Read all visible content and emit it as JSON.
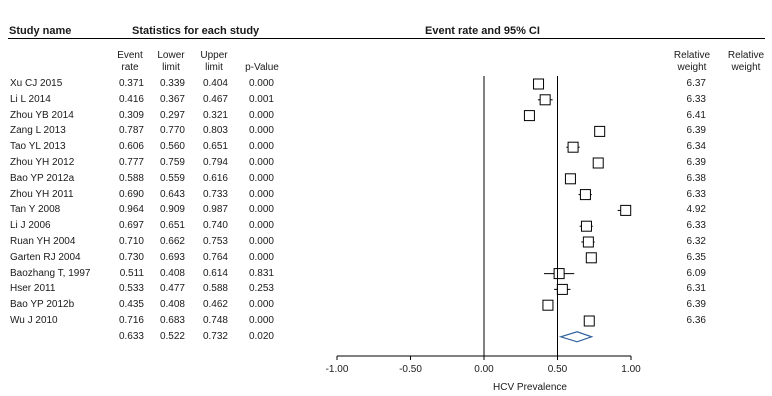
{
  "headers": {
    "study_name": "Study name",
    "stats": "Statistics for each study",
    "event_rate_ci": "Event rate and 95% CI",
    "rel_weight_1": [
      "Relative",
      "weight"
    ],
    "rel_weight_2": [
      "Relative",
      "weight"
    ],
    "event_rate": [
      "Event",
      "rate"
    ],
    "lower_limit": [
      "Lower",
      "limit"
    ],
    "upper_limit": [
      "Upper",
      "limit"
    ],
    "p_value": "p-Value"
  },
  "chart_data": {
    "type": "forest",
    "xlabel": "HCV Prevalence",
    "xlim": [
      -1.0,
      1.0
    ],
    "x_ticks": [
      "-1.00",
      "-0.50",
      "0.00",
      "0.50",
      "1.00"
    ],
    "x_tick_values": [
      -1.0,
      -0.5,
      0.0,
      0.5,
      1.0
    ],
    "vertical_lines": [
      0.0,
      0.5
    ],
    "studies": [
      {
        "name": "Xu CJ 2015",
        "rate": "0.371",
        "lower": "0.339",
        "upper": "0.404",
        "p": "0.000",
        "weight": "6.37",
        "x": 0.371,
        "lo": 0.339,
        "hi": 0.404
      },
      {
        "name": "Li L 2014",
        "rate": "0.416",
        "lower": "0.367",
        "upper": "0.467",
        "p": "0.001",
        "weight": "6.33",
        "x": 0.416,
        "lo": 0.367,
        "hi": 0.467
      },
      {
        "name": "Zhou YB 2014",
        "rate": "0.309",
        "lower": "0.297",
        "upper": "0.321",
        "p": "0.000",
        "weight": "6.41",
        "x": 0.309,
        "lo": 0.297,
        "hi": 0.321
      },
      {
        "name": "Zang L 2013",
        "rate": "0.787",
        "lower": "0.770",
        "upper": "0.803",
        "p": "0.000",
        "weight": "6.39",
        "x": 0.787,
        "lo": 0.77,
        "hi": 0.803
      },
      {
        "name": "Tao YL 2013",
        "rate": "0.606",
        "lower": "0.560",
        "upper": "0.651",
        "p": "0.000",
        "weight": "6.34",
        "x": 0.606,
        "lo": 0.56,
        "hi": 0.651
      },
      {
        "name": "Zhou YH 2012",
        "rate": "0.777",
        "lower": "0.759",
        "upper": "0.794",
        "p": "0.000",
        "weight": "6.39",
        "x": 0.777,
        "lo": 0.759,
        "hi": 0.794
      },
      {
        "name": "Bao YP 2012a",
        "rate": "0.588",
        "lower": "0.559",
        "upper": "0.616",
        "p": "0.000",
        "weight": "6.38",
        "x": 0.588,
        "lo": 0.559,
        "hi": 0.616
      },
      {
        "name": "Zhou YH 2011",
        "rate": "0.690",
        "lower": "0.643",
        "upper": "0.733",
        "p": "0.000",
        "weight": "6.33",
        "x": 0.69,
        "lo": 0.643,
        "hi": 0.733
      },
      {
        "name": "Tan Y 2008",
        "rate": "0.964",
        "lower": "0.909",
        "upper": "0.987",
        "p": "0.000",
        "weight": "4.92",
        "x": 0.964,
        "lo": 0.909,
        "hi": 0.987
      },
      {
        "name": "Li J 2006",
        "rate": "0.697",
        "lower": "0.651",
        "upper": "0.740",
        "p": "0.000",
        "weight": "6.33",
        "x": 0.697,
        "lo": 0.651,
        "hi": 0.74
      },
      {
        "name": "Ruan YH 2004",
        "rate": "0.710",
        "lower": "0.662",
        "upper": "0.753",
        "p": "0.000",
        "weight": "6.32",
        "x": 0.71,
        "lo": 0.662,
        "hi": 0.753
      },
      {
        "name": "Garten RJ 2004",
        "rate": "0.730",
        "lower": "0.693",
        "upper": "0.764",
        "p": "0.000",
        "weight": "6.35",
        "x": 0.73,
        "lo": 0.693,
        "hi": 0.764
      },
      {
        "name": "Baozhang T, 1997",
        "rate": "0.511",
        "lower": "0.408",
        "upper": "0.614",
        "p": "0.831",
        "weight": "6.09",
        "x": 0.511,
        "lo": 0.408,
        "hi": 0.614
      },
      {
        "name": "Hser 2011",
        "rate": "0.533",
        "lower": "0.477",
        "upper": "0.588",
        "p": "0.253",
        "weight": "6.31",
        "x": 0.533,
        "lo": 0.477,
        "hi": 0.588
      },
      {
        "name": "Bao YP 2012b",
        "rate": "0.435",
        "lower": "0.408",
        "upper": "0.462",
        "p": "0.000",
        "weight": "6.39",
        "x": 0.435,
        "lo": 0.408,
        "hi": 0.462
      },
      {
        "name": "Wu J 2010",
        "rate": "0.716",
        "lower": "0.683",
        "upper": "0.748",
        "p": "0.000",
        "weight": "6.36",
        "x": 0.716,
        "lo": 0.683,
        "hi": 0.748
      }
    ],
    "pooled": {
      "rate": "0.633",
      "lower": "0.522",
      "upper": "0.732",
      "p": "0.020",
      "x": 0.633,
      "lo": 0.522,
      "hi": 0.732
    },
    "colors": {
      "line": "#000000",
      "box_fill": "#ffffff",
      "diamond": "#2e5f9e",
      "diamond_fill": "#ffffff"
    }
  }
}
